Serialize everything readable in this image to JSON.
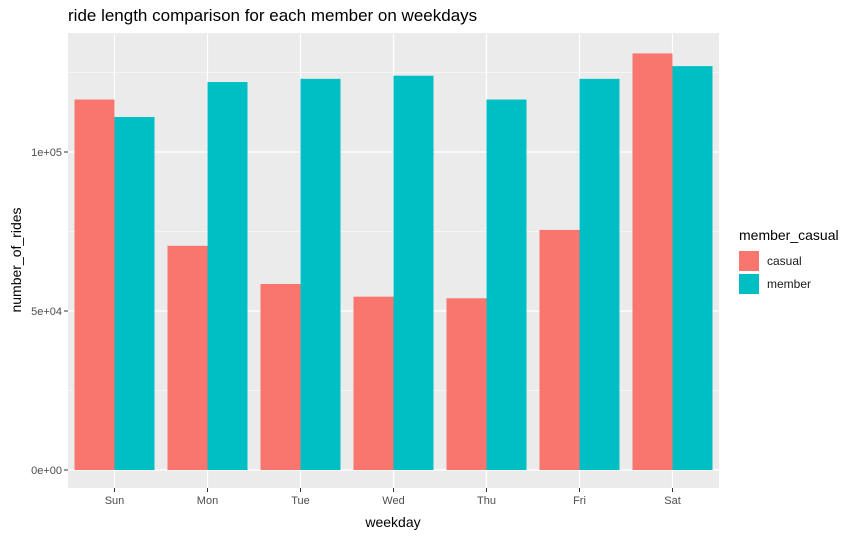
{
  "chart_data": {
    "type": "bar",
    "title": "ride length comparison for each member on weekdays",
    "xlabel": "weekday",
    "ylabel": "number_of_rides",
    "categories": [
      "Sun",
      "Mon",
      "Tue",
      "Wed",
      "Thu",
      "Fri",
      "Sat"
    ],
    "series": [
      {
        "name": "casual",
        "color": "#F8766D",
        "values": [
          116500,
          70500,
          58500,
          54500,
          54000,
          75500,
          131000
        ]
      },
      {
        "name": "member",
        "color": "#00BFC4",
        "values": [
          111000,
          122000,
          123000,
          124000,
          116500,
          123000,
          127000
        ]
      }
    ],
    "yticks": [
      0,
      50000,
      100000
    ],
    "ytick_labels": [
      "0e+00",
      "5e+04",
      "1e+05"
    ],
    "ylim": [
      0,
      137500
    ],
    "legend_title": "member_casual",
    "legend_position": "right",
    "grid": true,
    "panel_background": "#EBEBEB"
  }
}
